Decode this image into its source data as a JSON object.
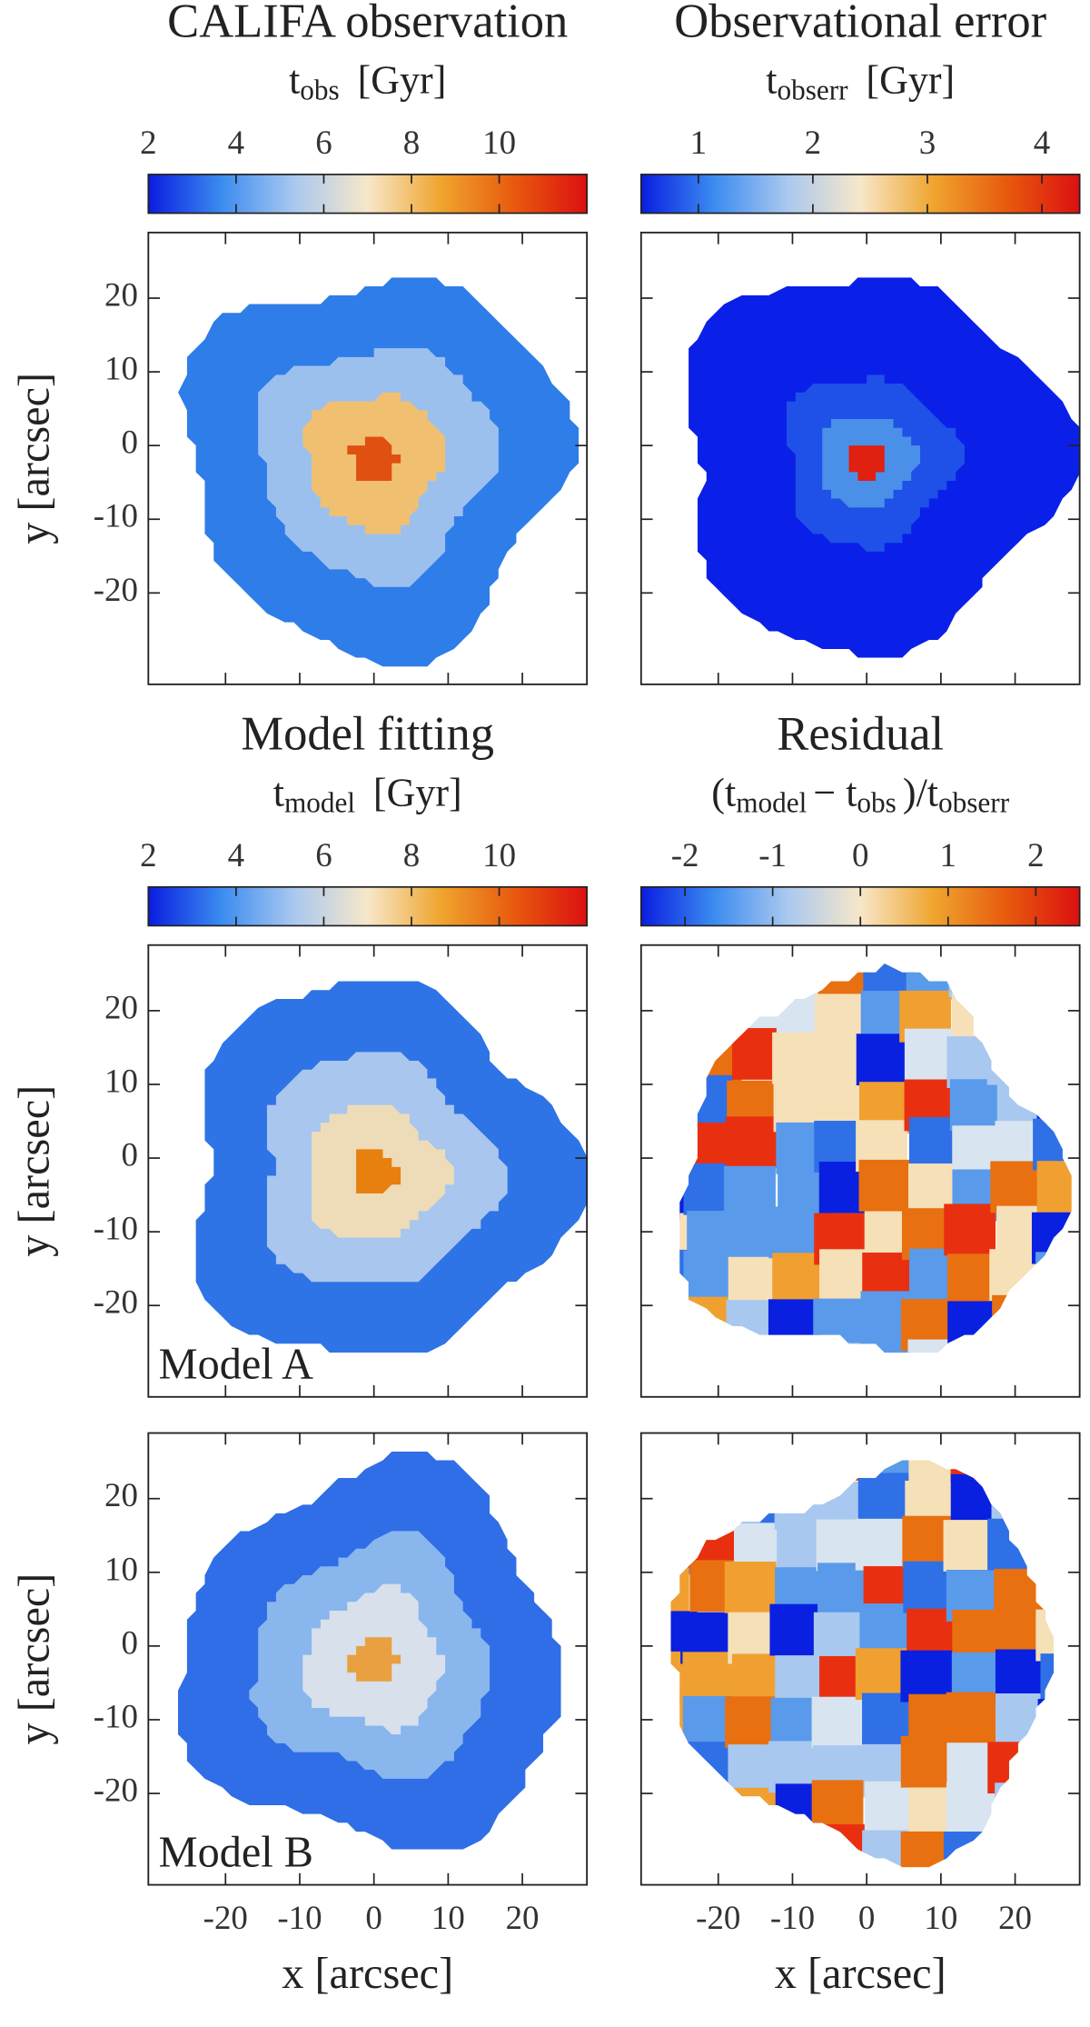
{
  "chart_data": [
    {
      "type": "image",
      "title": "CALIFA observation",
      "colorbar_label": [
        "t",
        "obs",
        "[Gyr]"
      ],
      "cblim": [
        2,
        12
      ],
      "cbticks": [
        2,
        4,
        6,
        8,
        10
      ],
      "colormap": [
        "#0a1de0",
        "#3b8cf0",
        "#aac8ef",
        "#f7e7c9",
        "#efa52e",
        "#e85a0e",
        "#dc1010"
      ],
      "xlim": [
        -30.4,
        28.7
      ],
      "ylim": [
        -32.4,
        28.9
      ],
      "xticks": [
        -20,
        -10,
        0,
        10,
        20
      ],
      "yticks": [
        -20,
        -10,
        0,
        10,
        20
      ],
      "ylabel": "y [arcsec]"
    },
    {
      "type": "image",
      "title": "Observational error",
      "colorbar_label": [
        "t",
        "obserr",
        "[Gyr]"
      ],
      "cblim": [
        0.5,
        4.33
      ],
      "cbticks": [
        1,
        2,
        3,
        4
      ],
      "colormap": [
        "#0a1de0",
        "#3b8cf0",
        "#aac8ef",
        "#f7e7c9",
        "#efa52e",
        "#e85a0e",
        "#dc1010"
      ],
      "xlim": [
        -30.4,
        28.7
      ],
      "ylim": [
        -32.4,
        28.9
      ],
      "xticks": [
        -20,
        -10,
        0,
        10,
        20
      ],
      "yticks": [
        -20,
        -10,
        0,
        10,
        20
      ]
    },
    {
      "type": "image",
      "title": "Model fitting",
      "colorbar_label": [
        "t",
        "model",
        "[Gyr]"
      ],
      "cblim": [
        2,
        12
      ],
      "cbticks": [
        2,
        4,
        6,
        8,
        10
      ],
      "colormap": [
        "#0a1de0",
        "#3b8cf0",
        "#aac8ef",
        "#f7e7c9",
        "#efa52e",
        "#e85a0e",
        "#dc1010"
      ],
      "xlim": [
        -30.4,
        28.7
      ],
      "ylim": [
        -32.4,
        28.9
      ],
      "xticks": [
        -20,
        -10,
        0,
        10,
        20
      ],
      "yticks": [
        -20,
        -10,
        0,
        10,
        20
      ],
      "ylabel": "y [arcsec]",
      "annotation": "Model A"
    },
    {
      "type": "image",
      "title": "Residual",
      "colorbar_label": [
        "(t",
        "model",
        "− t",
        "obs",
        ")/t",
        "obserr"
      ],
      "cblim": [
        -2.5,
        2.5
      ],
      "cbticks": [
        -2,
        -1,
        0,
        1,
        2
      ],
      "colormap": [
        "#0a1de0",
        "#3b8cf0",
        "#aac8ef",
        "#f7e7c9",
        "#efa52e",
        "#e85a0e",
        "#dc1010"
      ],
      "xlim": [
        -30.4,
        28.7
      ],
      "ylim": [
        -32.4,
        28.9
      ],
      "xticks": [
        -20,
        -10,
        0,
        10,
        20
      ],
      "yticks": [
        -20,
        -10,
        0,
        10,
        20
      ]
    },
    {
      "type": "image",
      "xlim": [
        -30.4,
        28.7
      ],
      "ylim": [
        -32.4,
        28.9
      ],
      "xticks": [
        -20,
        -10,
        0,
        10,
        20
      ],
      "yticks": [
        -20,
        -10,
        0,
        10,
        20
      ],
      "xlabel": "x [arcsec]",
      "ylabel": "y [arcsec]",
      "annotation": "Model B"
    },
    {
      "type": "image",
      "xlim": [
        -30.4,
        28.7
      ],
      "ylim": [
        -32.4,
        28.9
      ],
      "xticks": [
        -20,
        -10,
        0,
        10,
        20
      ],
      "yticks": [
        -20,
        -10,
        0,
        10,
        20
      ],
      "xlabel": "x [arcsec]"
    }
  ]
}
